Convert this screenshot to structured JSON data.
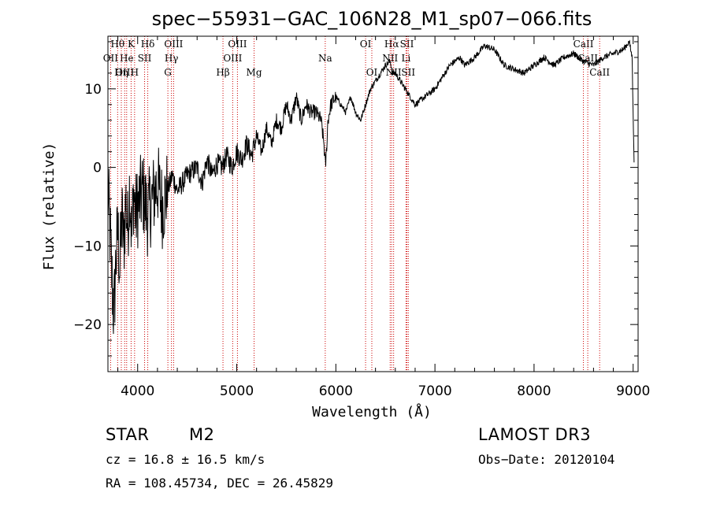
{
  "chart_data": {
    "type": "line",
    "title": "spec−55931−GAC_106N28_M1_sp07−066.fits",
    "xlabel": "Wavelength (Å)",
    "ylabel": "Flux (relative)",
    "xlim": [
      3700,
      9050
    ],
    "ylim": [
      -26,
      16.7
    ],
    "xticks": [
      4000,
      5000,
      6000,
      7000,
      8000,
      9000
    ],
    "yticks": [
      -20,
      -10,
      0,
      10
    ],
    "ytick_labels": [
      "−20",
      "−10",
      "0",
      "10"
    ],
    "spectrum": {
      "x": [
        3700,
        3720,
        3740,
        3760,
        3780,
        3800,
        3820,
        3840,
        3860,
        3880,
        3900,
        3920,
        3940,
        3960,
        3980,
        4000,
        4050,
        4100,
        4150,
        4200,
        4250,
        4300,
        4350,
        4400,
        4450,
        4500,
        4550,
        4600,
        4650,
        4700,
        4750,
        4800,
        4850,
        4900,
        4950,
        5000,
        5050,
        5100,
        5150,
        5200,
        5250,
        5300,
        5350,
        5400,
        5450,
        5500,
        5550,
        5600,
        5650,
        5700,
        5750,
        5800,
        5850,
        5880,
        5895,
        5905,
        5920,
        5950,
        6000,
        6050,
        6100,
        6150,
        6200,
        6250,
        6300,
        6350,
        6400,
        6450,
        6500,
        6550,
        6570,
        6600,
        6650,
        6700,
        6750,
        6800,
        6850,
        6900,
        6950,
        7000,
        7050,
        7100,
        7150,
        7200,
        7250,
        7300,
        7400,
        7500,
        7600,
        7700,
        7800,
        7900,
        8000,
        8100,
        8200,
        8300,
        8400,
        8500,
        8600,
        8700,
        8800,
        8900,
        8960,
        8990,
        9010
      ],
      "y": [
        -3,
        -8,
        -14,
        -19,
        -12,
        -8,
        -13,
        -6,
        -10,
        -4,
        -8,
        -2,
        -9,
        -3,
        -6,
        -5,
        -3,
        -6,
        -4,
        -2,
        -5,
        -3,
        -1,
        -3,
        -2,
        -1,
        -0.5,
        0,
        -2,
        1,
        -1,
        0.5,
        0,
        1.5,
        0,
        2,
        1,
        3,
        1.5,
        4,
        2,
        5,
        3,
        6,
        5,
        8,
        6,
        9,
        6,
        8,
        7,
        7,
        6,
        3,
        0,
        2,
        6,
        8,
        9,
        8,
        7,
        9,
        7,
        6,
        8,
        10,
        11,
        12,
        13,
        13.5,
        12,
        12,
        11,
        10,
        9,
        8,
        8.5,
        9,
        9.5,
        10,
        11,
        12,
        13,
        13.5,
        14,
        13,
        14,
        15.5,
        15,
        13,
        12.5,
        12,
        13,
        14,
        13,
        14,
        14.5,
        13.5,
        13,
        14,
        14.5,
        15,
        16,
        14,
        0
      ],
      "noise": {
        "below_4300": 5.5,
        "4300_to_5200": 1.4,
        "5200_to_6000": 1.0,
        "above_6000": 0.4
      }
    },
    "lines": [
      {
        "label": "Hθ",
        "x": 3798,
        "row": 0
      },
      {
        "label": "OII",
        "x": 3727,
        "row": 1
      },
      {
        "label": "OIII",
        "x": 3869,
        "row": 2
      },
      {
        "label": "He",
        "x": 3889,
        "row": 1
      },
      {
        "label": "Hη",
        "x": 3835,
        "row": 2
      },
      {
        "label": "K",
        "x": 3934,
        "row": 0
      },
      {
        "label": "SII",
        "x": 4070,
        "row": 1
      },
      {
        "label": "H",
        "x": 3969,
        "row": 2
      },
      {
        "label": "Hδ",
        "x": 4102,
        "row": 0
      },
      {
        "label": "OIII",
        "x": 4363,
        "row": 0
      },
      {
        "label": "Hγ",
        "x": 4341,
        "row": 1
      },
      {
        "label": "G",
        "x": 4305,
        "row": 2
      },
      {
        "label": "Hβ",
        "x": 4861,
        "row": 2
      },
      {
        "label": "OIII",
        "x": 5007,
        "row": 0
      },
      {
        "label": "OIII",
        "x": 4959,
        "row": 1
      },
      {
        "label": "Mg",
        "x": 5175,
        "row": 2
      },
      {
        "label": "Na",
        "x": 5893,
        "row": 1
      },
      {
        "label": "OI",
        "x": 6300,
        "row": 0
      },
      {
        "label": "OI",
        "x": 6363,
        "row": 2
      },
      {
        "label": "Hα",
        "x": 6563,
        "row": 0
      },
      {
        "label": "NII",
        "x": 6548,
        "row": 1
      },
      {
        "label": "NII",
        "x": 6583,
        "row": 2
      },
      {
        "label": "SII",
        "x": 6717,
        "row": 0
      },
      {
        "label": "Li",
        "x": 6708,
        "row": 1
      },
      {
        "label": "SII",
        "x": 6731,
        "row": 2
      },
      {
        "label": "CaII",
        "x": 8498,
        "row": 0
      },
      {
        "label": "CaII",
        "x": 8542,
        "row": 1
      },
      {
        "label": "CaII",
        "x": 8662,
        "row": 2
      }
    ]
  },
  "info": {
    "class": "STAR",
    "subclass": "M2",
    "survey": "LAMOST DR3",
    "cz": "cz = 16.8 ± 16.5 km/s",
    "obs_date": "Obs−Date: 20120104",
    "radec": "RA = 108.45734, DEC =  26.45829"
  }
}
